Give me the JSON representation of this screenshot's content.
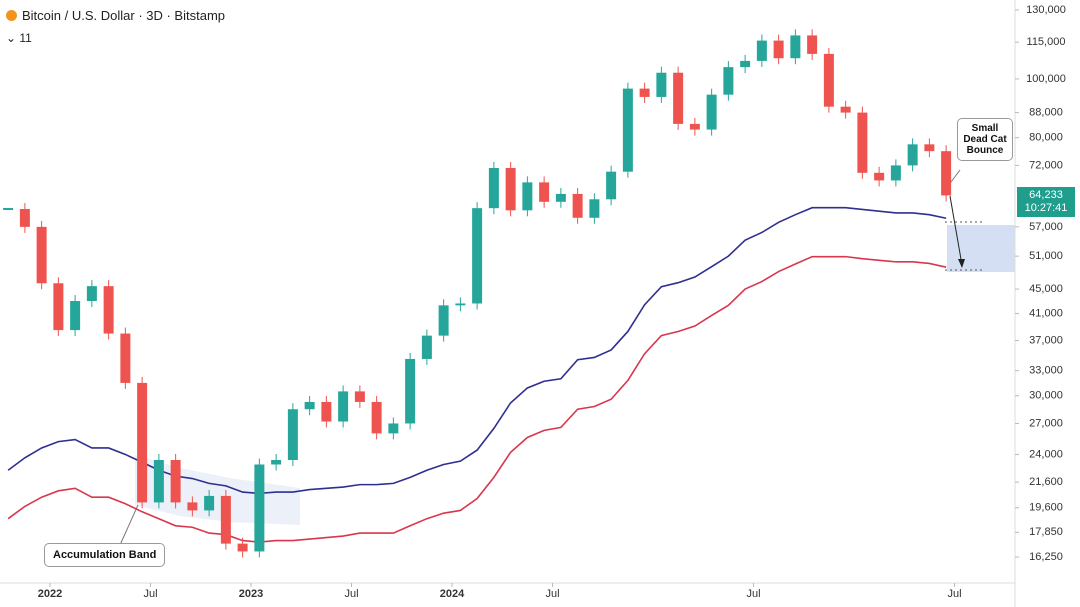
{
  "chart_data": {
    "type": "candlestick",
    "title": "Bitcoin / U.S. Dollar · 3D · Bitstamp",
    "indicator": "11",
    "log": true,
    "x": [
      "2021-10",
      "2021-11",
      "2021-12",
      "2022-01",
      "2022-02",
      "2022-03",
      "2022-04",
      "2022-05",
      "2022-06",
      "2022-07",
      "2022-08",
      "2022-09",
      "2022-10",
      "2022-11",
      "2022-12",
      "2023-01",
      "2023-02",
      "2023-03",
      "2023-04",
      "2023-05",
      "2023-06",
      "2023-07",
      "2023-08",
      "2023-09",
      "2023-10",
      "2023-11",
      "2023-12",
      "2024-01",
      "2024-02",
      "2024-03",
      "2024-04",
      "2024-05",
      "2024-06",
      "2024-07",
      "2024-08",
      "2024-09",
      "2024-10",
      "2024-11",
      "2024-12",
      "2025-01",
      "2025-02",
      "2025-03",
      "2025-04",
      "2025-05",
      "2025-06",
      "2025-07",
      "2025-08",
      "2025-09",
      "2025-10",
      "2025-11",
      "2025-12",
      "2026-01",
      "2026-02",
      "2026-03",
      "2026-04",
      "2026-05",
      "2026-06"
    ],
    "series": [
      {
        "up_color": "#26a69a",
        "down_color": "#ef5350",
        "values": [
          61000,
          57000,
          46000,
          38500,
          43000,
          45500,
          38000,
          31500,
          20000,
          23500,
          20000,
          19400,
          20500,
          17100,
          16600,
          23100,
          23500,
          28500,
          29300,
          27200,
          30500,
          29300,
          26000,
          27000,
          34500,
          37700,
          42300,
          42600,
          61200,
          71300,
          60700,
          67500,
          62700,
          64600,
          59000,
          63300,
          70300,
          96400,
          93400,
          102400,
          84300,
          82500,
          94200,
          104600,
          107100,
          115700,
          108200,
          118000,
          110000,
          90000,
          88000,
          70000,
          68000,
          72000,
          78000,
          76000,
          64233
        ],
        "value_labels": {
          "56": "64,233"
        }
      },
      {
        "color": "#2e2f8f",
        "values": [
          22600,
          23700,
          24600,
          25200,
          25400,
          24600,
          24600,
          24000,
          23300,
          22600,
          22100,
          21900,
          21500,
          21300,
          20800,
          20700,
          20800,
          20800,
          21000,
          21100,
          21200,
          21400,
          21400,
          21500,
          22000,
          22600,
          23100,
          23400,
          24400,
          26500,
          29200,
          30900,
          31700,
          32000,
          34400,
          34700,
          35700,
          38300,
          42400,
          45400,
          46100,
          47100,
          49000,
          51000,
          54200,
          55800,
          58000,
          59700,
          61300,
          61300,
          61300,
          60900,
          60500,
          60100,
          60100,
          59700,
          58900
        ]
      },
      {
        "color": "#d9364e",
        "values": [
          18800,
          19700,
          20400,
          20900,
          21100,
          20400,
          20400,
          19900,
          19300,
          18800,
          18300,
          18200,
          17800,
          17700,
          17300,
          17200,
          17300,
          17300,
          17400,
          17500,
          17600,
          17800,
          17800,
          17800,
          18300,
          18800,
          19200,
          19400,
          20300,
          22000,
          24200,
          25600,
          26300,
          26600,
          28500,
          28800,
          29600,
          31800,
          35200,
          37700,
          38300,
          39100,
          40700,
          42300,
          45000,
          46300,
          48100,
          49500,
          50900,
          50900,
          50900,
          50500,
          50200,
          49900,
          49900,
          49600,
          48900
        ]
      }
    ],
    "countdown": "10:27:41",
    "ylim": [
      14780,
      135000
    ],
    "yticks": [
      {
        "value": 130000,
        "label": "130,000"
      },
      {
        "value": 115000,
        "label": "115,000"
      },
      {
        "value": 100000,
        "label": "100,000"
      },
      {
        "value": 88000,
        "label": "88,000"
      },
      {
        "value": 80000,
        "label": "80,000"
      },
      {
        "value": 72000,
        "label": "72,000"
      },
      {
        "value": 57000,
        "label": "57,000"
      },
      {
        "value": 51000,
        "label": "51,000"
      },
      {
        "value": 45000,
        "label": "45,000"
      },
      {
        "value": 41000,
        "label": "41,000"
      },
      {
        "value": 37000,
        "label": "37,000"
      },
      {
        "value": 33000,
        "label": "33,000"
      },
      {
        "value": 30000,
        "label": "30,000"
      },
      {
        "value": 27000,
        "label": "27,000"
      },
      {
        "value": 24000,
        "label": "24,000"
      },
      {
        "value": 21600,
        "label": "21,600"
      },
      {
        "value": 19600,
        "label": "19,600"
      },
      {
        "value": 17850,
        "label": "17,850"
      },
      {
        "value": 16250,
        "label": "16,250"
      }
    ],
    "xticks": [
      {
        "value": "2022-01",
        "label": "2022"
      },
      {
        "value": "2022-07",
        "label": "Jul"
      },
      {
        "value": "2023-01",
        "label": "2023"
      },
      {
        "value": "2023-07",
        "label": "Jul"
      },
      {
        "value": "2024-01",
        "label": "2024"
      },
      {
        "value": "2024-07",
        "label": "Jul"
      },
      {
        "value": "2025-07",
        "label": "Jul"
      },
      {
        "value": "2026-07",
        "label": "Jul"
      }
    ],
    "annotations": [
      {
        "text": "Small Dead Cat Bounce"
      },
      {
        "text": "Accumulation Band"
      }
    ]
  }
}
